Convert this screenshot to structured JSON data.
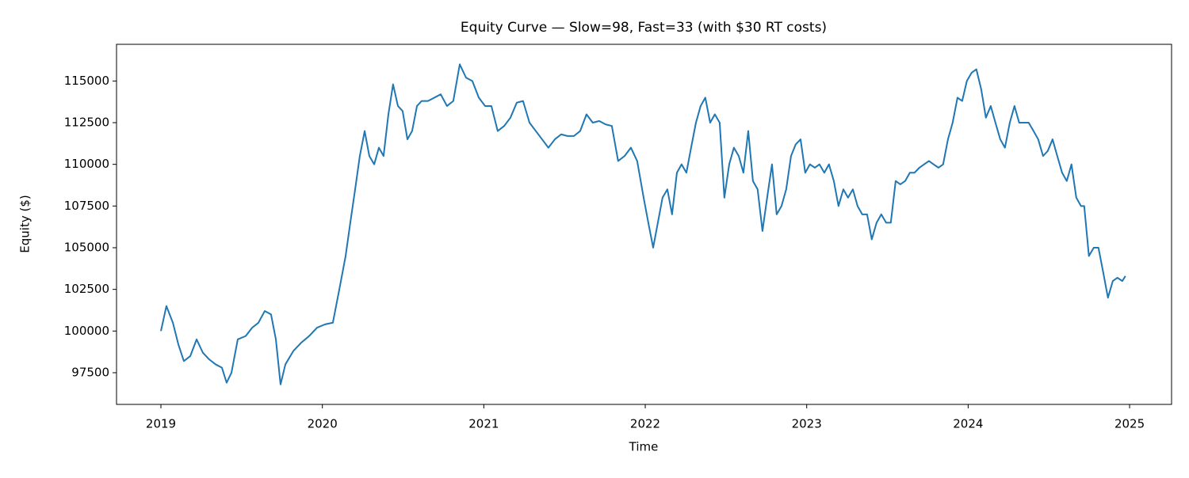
{
  "chart_data": {
    "type": "line",
    "title": "Equity Curve — Slow=98, Fast=33 (with $30 RT costs)",
    "x_label": "Time",
    "y_label": "Equity ($)",
    "xlim": [
      2018.725,
      2025.26
    ],
    "xticks": [
      2019,
      2020,
      2021,
      2022,
      2023,
      2024,
      2025
    ],
    "ylim": [
      95600,
      117200
    ],
    "yticks": [
      97500,
      100000,
      102500,
      105000,
      107500,
      110000,
      112500,
      115000
    ],
    "series": [
      {
        "color": "#1f77b4",
        "x": [
          2019.0,
          2019.034,
          2019.074,
          2019.108,
          2019.142,
          2019.182,
          2019.221,
          2019.26,
          2019.299,
          2019.339,
          2019.378,
          2019.407,
          2019.437,
          2019.476,
          2019.525,
          2019.565,
          2019.604,
          2019.643,
          2019.682,
          2019.712,
          2019.741,
          2019.771,
          2019.82,
          2019.869,
          2019.918,
          2019.967,
          2020.016,
          2020.065,
          2020.105,
          2020.144,
          2020.173,
          2020.203,
          2020.232,
          2020.262,
          2020.291,
          2020.321,
          2020.35,
          2020.379,
          2020.409,
          2020.438,
          2020.468,
          2020.497,
          2020.527,
          2020.556,
          2020.586,
          2020.615,
          2020.654,
          2020.694,
          2020.733,
          2020.772,
          2020.811,
          2020.851,
          2020.89,
          2020.929,
          2020.969,
          2021.008,
          2021.047,
          2021.086,
          2021.126,
          2021.165,
          2021.204,
          2021.243,
          2021.283,
          2021.322,
          2021.361,
          2021.4,
          2021.44,
          2021.479,
          2021.518,
          2021.558,
          2021.597,
          2021.636,
          2021.675,
          2021.715,
          2021.754,
          2021.793,
          2021.832,
          2021.872,
          2021.911,
          2021.95,
          2021.99,
          2022.019,
          2022.049,
          2022.078,
          2022.107,
          2022.137,
          2022.166,
          2022.196,
          2022.225,
          2022.255,
          2022.284,
          2022.314,
          2022.343,
          2022.372,
          2022.402,
          2022.431,
          2022.461,
          2022.49,
          2022.52,
          2022.549,
          2022.579,
          2022.608,
          2022.638,
          2022.667,
          2022.696,
          2022.726,
          2022.755,
          2022.785,
          2022.814,
          2022.844,
          2022.873,
          2022.903,
          2022.932,
          2022.962,
          2022.991,
          2023.02,
          2023.05,
          2023.079,
          2023.109,
          2023.138,
          2023.168,
          2023.197,
          2023.227,
          2023.256,
          2023.286,
          2023.315,
          2023.344,
          2023.374,
          2023.403,
          2023.433,
          2023.462,
          2023.492,
          2023.521,
          2023.551,
          2023.58,
          2023.61,
          2023.639,
          2023.668,
          2023.698,
          2023.727,
          2023.757,
          2023.786,
          2023.816,
          2023.845,
          2023.875,
          2023.904,
          2023.934,
          2023.963,
          2023.992,
          2024.022,
          2024.051,
          2024.081,
          2024.11,
          2024.14,
          2024.169,
          2024.199,
          2024.228,
          2024.258,
          2024.287,
          2024.316,
          2024.346,
          2024.375,
          2024.405,
          2024.434,
          2024.464,
          2024.493,
          2024.523,
          2024.552,
          2024.582,
          2024.611,
          2024.64,
          2024.67,
          2024.699,
          2024.719,
          2024.748,
          2024.778,
          2024.807,
          2024.837,
          2024.866,
          2024.896,
          2024.925,
          2024.955,
          2024.974
        ],
        "values": [
          100000,
          101500,
          100500,
          99200,
          98200,
          98500,
          99500,
          98700,
          98300,
          98000,
          97800,
          96900,
          97500,
          99500,
          99700,
          100200,
          100500,
          101200,
          101000,
          99500,
          96800,
          98000,
          98800,
          99300,
          99700,
          100200,
          100400,
          100500,
          102500,
          104500,
          106500,
          108500,
          110500,
          112000,
          110500,
          110000,
          111000,
          110500,
          113000,
          114800,
          113500,
          113200,
          111500,
          112000,
          113500,
          113800,
          113800,
          114000,
          114200,
          113500,
          113800,
          116000,
          115200,
          115000,
          114000,
          113500,
          113500,
          112000,
          112300,
          112800,
          113700,
          113800,
          112500,
          112000,
          111500,
          111000,
          111500,
          111800,
          111700,
          111700,
          112000,
          113000,
          112500,
          112600,
          112400,
          112300,
          110200,
          110500,
          111000,
          110200,
          108000,
          106500,
          105000,
          106500,
          108000,
          108500,
          107000,
          109500,
          110000,
          109500,
          111000,
          112500,
          113500,
          114000,
          112500,
          113000,
          112500,
          108000,
          110000,
          111000,
          110500,
          109500,
          112000,
          109000,
          108500,
          106000,
          108000,
          110000,
          107000,
          107500,
          108500,
          110500,
          111200,
          111500,
          109500,
          110000,
          109800,
          110000,
          109500,
          110000,
          109000,
          107500,
          108500,
          108000,
          108500,
          107500,
          107000,
          107000,
          105500,
          106500,
          107000,
          106500,
          106500,
          109000,
          108800,
          109000,
          109500,
          109500,
          109800,
          110000,
          110200,
          110000,
          109800,
          110000,
          111500,
          112500,
          114000,
          113800,
          115000,
          115500,
          115700,
          114500,
          112800,
          113500,
          112500,
          111500,
          111000,
          112500,
          113500,
          112500,
          112500,
          112500,
          112000,
          111500,
          110500,
          110800,
          111500,
          110500,
          109500,
          109000,
          110000,
          108000,
          107500,
          107500,
          104500,
          105000,
          105000,
          103500,
          102000,
          103000,
          103200,
          103000,
          103300
        ]
      }
    ]
  }
}
